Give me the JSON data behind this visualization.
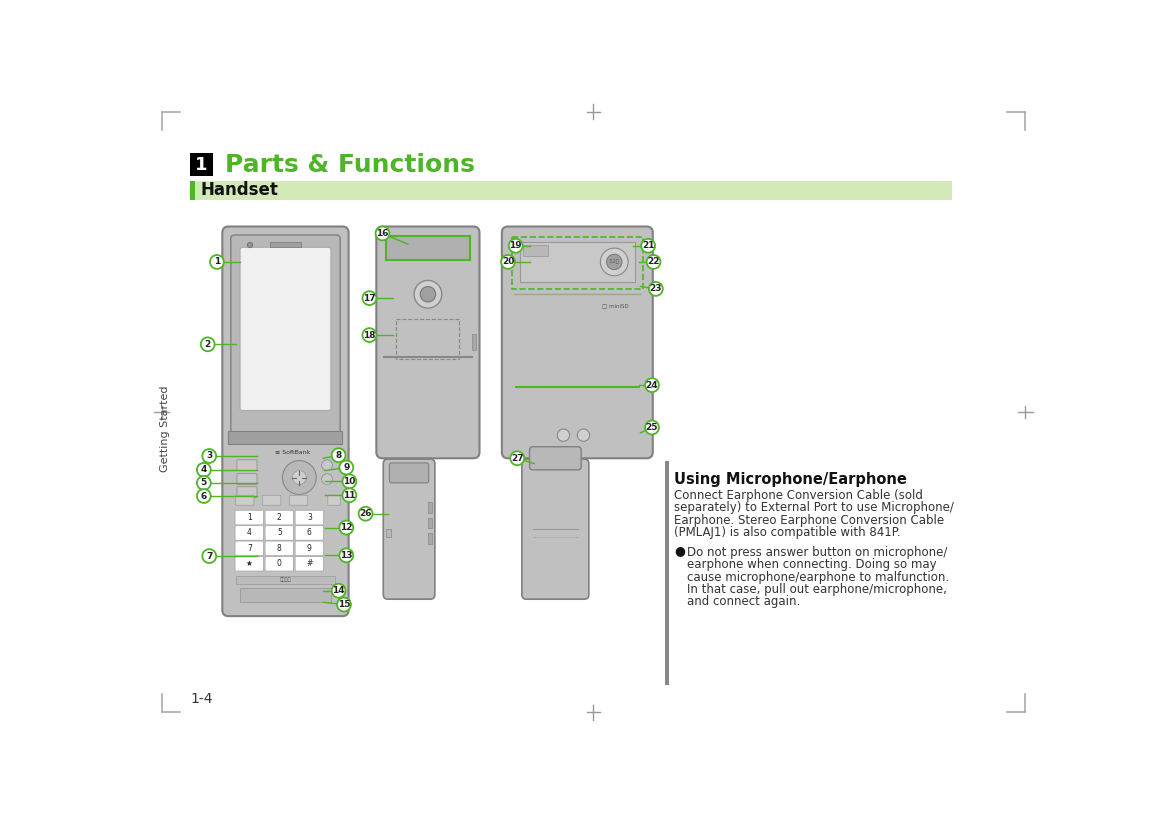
{
  "bg_color": "#ffffff",
  "green_color": "#4db526",
  "black": "#1a1a1a",
  "gray_phone": "#c0c0c0",
  "gray_dark": "#999999",
  "gray_mid": "#b0b0b0",
  "gray_light": "#d8d8d8",
  "gray_outline": "#808080",
  "white": "#ffffff",
  "handset_bg": "#d4e9b8",
  "sidebar_color": "#444444",
  "corner_color": "#aaaaaa",
  "crosshair_color": "#999999",
  "text_color": "#222222",
  "green_title": "Parts & Functions",
  "handset_label": "Handset",
  "sidebar_text": "Getting Started",
  "page_num": "1-4",
  "using_title": "Using Microphone/Earphone",
  "using_body1": "Connect Earphone Conversion Cable (sold",
  "using_body2": "separately) to External Port to use Microphone/",
  "using_body3": "Earphone. Stereo Earphone Conversion Cable",
  "using_body4": "(PMLAJ1) is also compatible with 841P.",
  "bullet1": "Do not press answer button on microphone/",
  "bullet2": "earphone when connecting. Doing so may",
  "bullet3": "cause microphone/earphone to malfunction.",
  "bullet4": "In that case, pull out earphone/microphone,",
  "bullet5": "and connect again."
}
